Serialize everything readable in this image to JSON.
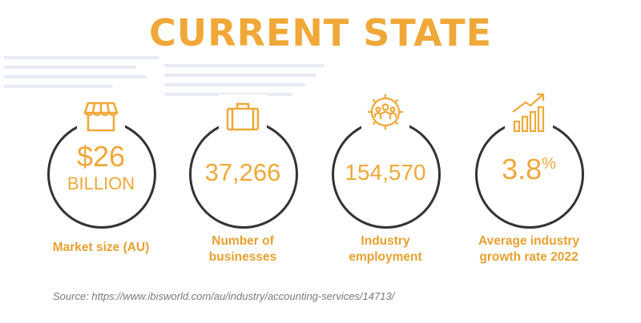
{
  "colors": {
    "accent": "#f0a839",
    "ring": "#333333",
    "label": "#e8a030",
    "source": "#7a7a7a"
  },
  "title": "CURRENT STATE",
  "stats": [
    {
      "icon": "storefront-icon",
      "value": "$26",
      "unit": "BILLION",
      "label_line1": "Market size (AU)",
      "label_line2": ""
    },
    {
      "icon": "briefcase-icon",
      "value": "37,266",
      "unit": "",
      "label_line1": "Number of",
      "label_line2": "businesses"
    },
    {
      "icon": "people-gear-icon",
      "value": "154,570",
      "unit": "",
      "label_line1": "Industry",
      "label_line2": "employment"
    },
    {
      "icon": "growth-chart-icon",
      "value": "3.8",
      "unit": "%",
      "label_line1": "Average industry",
      "label_line2": "growth rate 2022"
    }
  ],
  "source": "Source: https://www.ibisworld.com/au/industry/accounting-services/14713/"
}
